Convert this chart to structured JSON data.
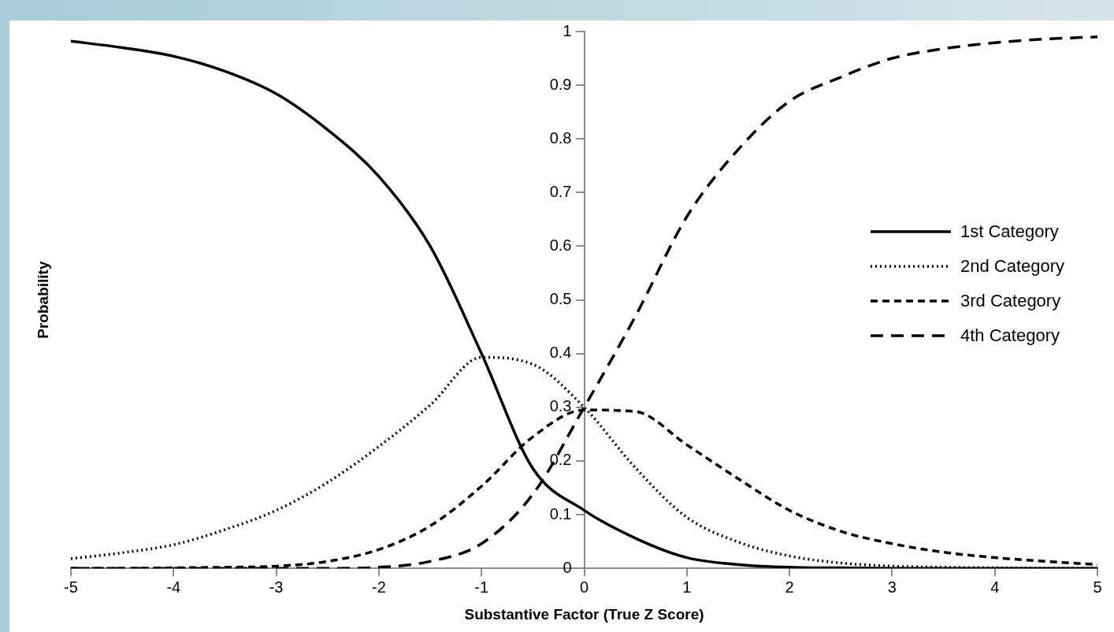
{
  "chart_data": {
    "type": "line",
    "xlabel": "Substantive Factor (True Z Score)",
    "ylabel": "Probability",
    "x": [
      -5,
      -4.5,
      -4,
      -3.5,
      -3,
      -2.5,
      -2,
      -1.5,
      -1,
      -0.5,
      0,
      0.5,
      1,
      1.5,
      2,
      2.5,
      3,
      3.5,
      4,
      4.5,
      5
    ],
    "series": [
      {
        "name": "1st Category",
        "color": "#000000",
        "line_style": "solid",
        "values": [
          0.982,
          0.97,
          0.954,
          0.926,
          0.884,
          0.817,
          0.73,
          0.6,
          0.4,
          0.186,
          0.108,
          0.056,
          0.02,
          0.007,
          0.002,
          0.001,
          0,
          0,
          0,
          0,
          0
        ]
      },
      {
        "name": "2nd Category",
        "color": "#000000",
        "line_style": "dotted",
        "values": [
          0.018,
          0.029,
          0.044,
          0.072,
          0.108,
          0.16,
          0.227,
          0.304,
          0.393,
          0.38,
          0.3,
          0.187,
          0.095,
          0.049,
          0.023,
          0.01,
          0.004,
          0.002,
          0.001,
          0,
          0
        ]
      },
      {
        "name": "3rd Category",
        "color": "#000000",
        "line_style": "dashed",
        "values": [
          0,
          0,
          0.001,
          0.002,
          0.004,
          0.013,
          0.035,
          0.079,
          0.153,
          0.245,
          0.295,
          0.292,
          0.23,
          0.167,
          0.108,
          0.069,
          0.046,
          0.03,
          0.02,
          0.013,
          0.007
        ]
      },
      {
        "name": "4th Category",
        "color": "#000000",
        "line_style": "dashed",
        "values": [
          0,
          0,
          0,
          0,
          0,
          0,
          0.002,
          0.013,
          0.046,
          0.138,
          0.3,
          0.47,
          0.655,
          0.78,
          0.87,
          0.915,
          0.95,
          0.968,
          0.979,
          0.986,
          0.99
        ]
      }
    ],
    "xlim": [
      -5,
      5
    ],
    "xticks": [
      -5,
      -4,
      -3,
      -2,
      -1,
      0,
      1,
      2,
      3,
      4,
      5
    ],
    "ylim": [
      0,
      1
    ],
    "yticks": [
      0,
      0.1,
      0.2,
      0.3,
      0.4,
      0.5,
      0.6,
      0.7,
      0.8,
      0.9,
      1
    ],
    "grid": false,
    "legend": "right",
    "marker": "none"
  }
}
